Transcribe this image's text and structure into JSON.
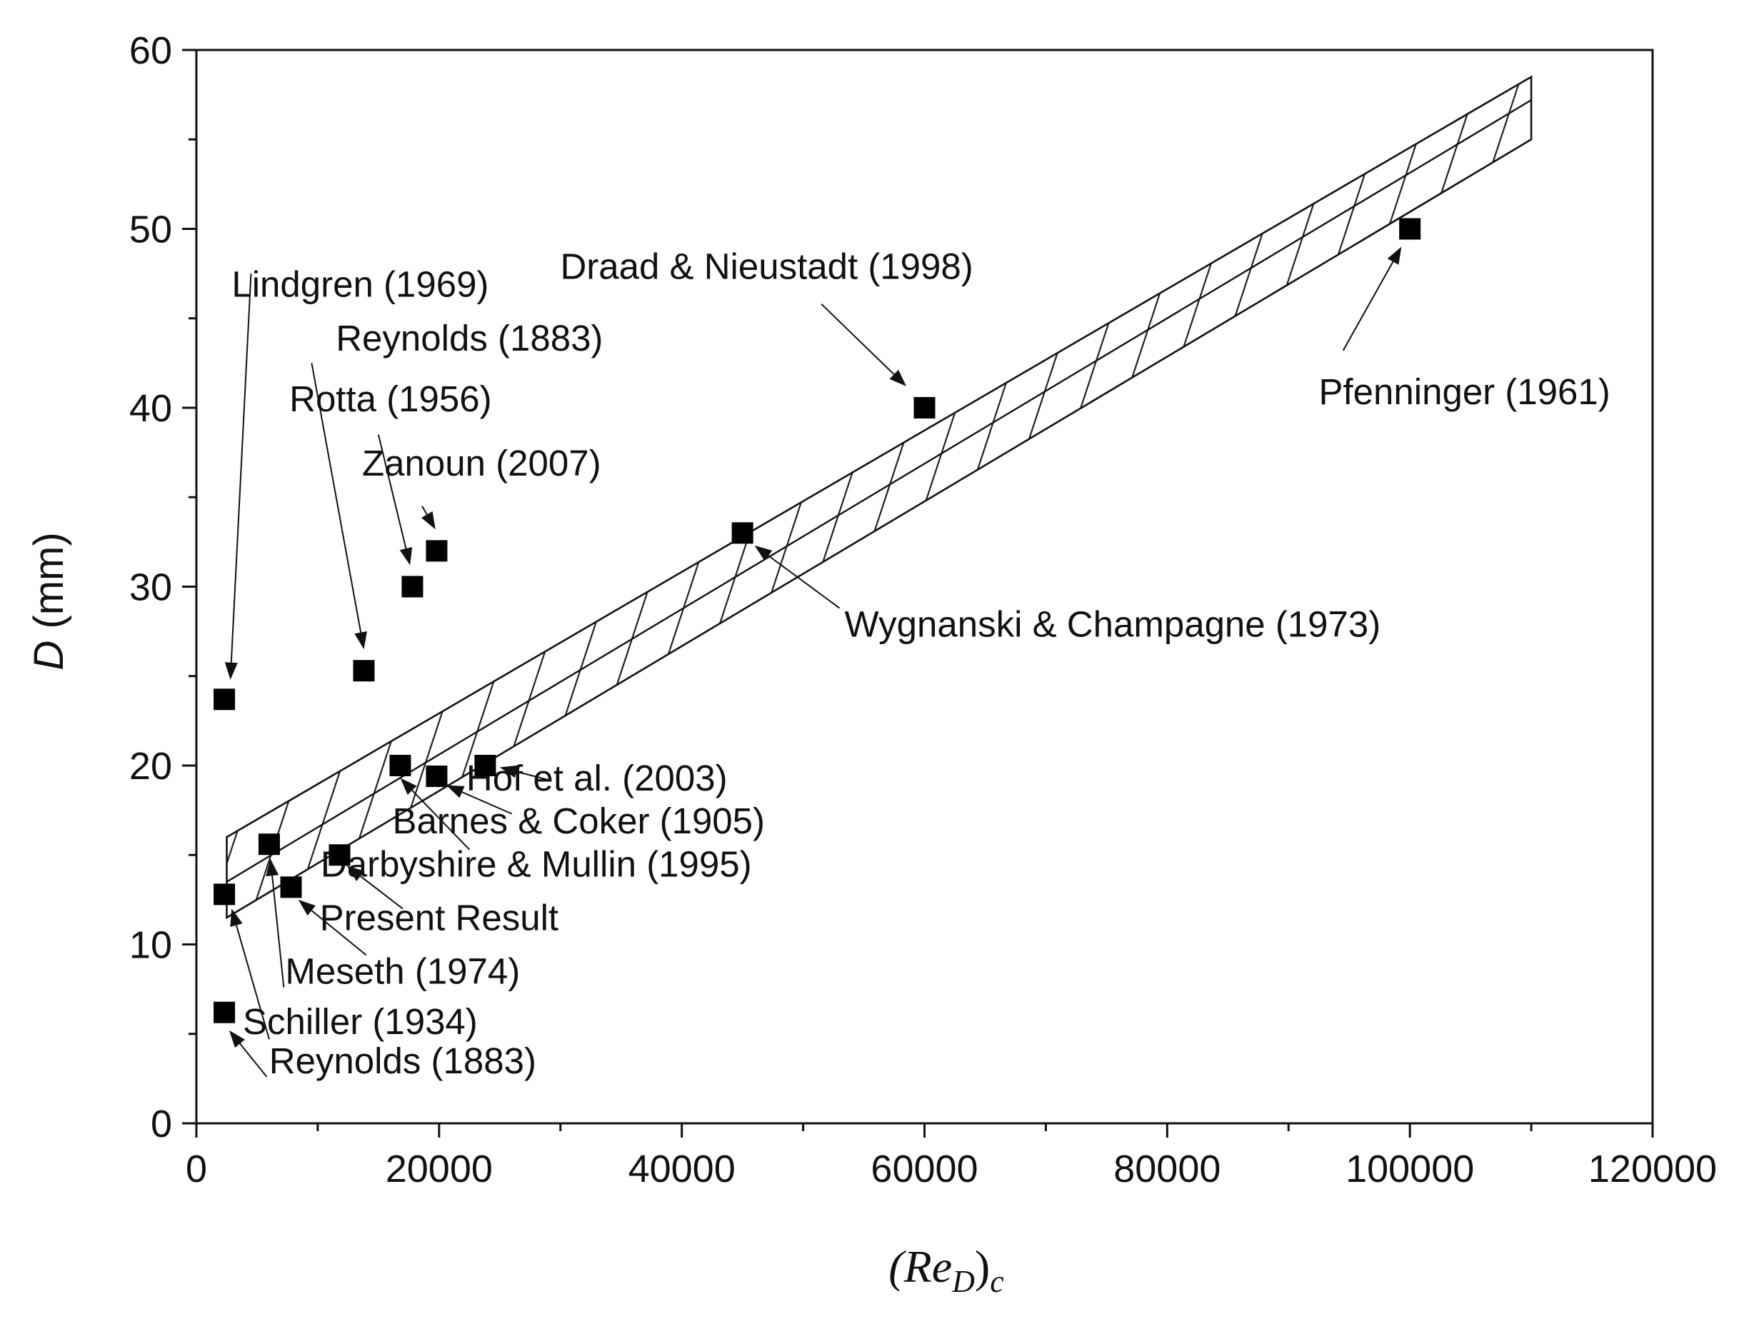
{
  "chart_data": {
    "type": "scatter",
    "title": "",
    "xlabel": {
      "base": "(Re",
      "sub": "D",
      "close": ")",
      "sub2": "c"
    },
    "ylabel": {
      "main": "D",
      "unit": " (mm)"
    },
    "xlim": [
      0,
      120000
    ],
    "ylim": [
      0,
      60
    ],
    "xticks": [
      0,
      20000,
      40000,
      60000,
      80000,
      100000,
      120000
    ],
    "yticks": [
      0,
      10,
      20,
      30,
      40,
      50,
      60
    ],
    "grid": false,
    "band": {
      "upper": [
        [
          2500,
          16
        ],
        [
          110000,
          58.5
        ]
      ],
      "middle": [
        [
          2500,
          13.5
        ],
        [
          110000,
          57.2
        ]
      ],
      "lower": [
        [
          2500,
          11.5
        ],
        [
          110000,
          55
        ]
      ],
      "fill": "hatched"
    },
    "points": [
      {
        "label": "Lindgren (1969)",
        "x": 2300,
        "y": 23.7
      },
      {
        "label": "Reynolds (1883)",
        "x": 13800,
        "y": 25.3
      },
      {
        "label": "Rotta (1956)",
        "x": 17800,
        "y": 30
      },
      {
        "label": "Zanoun (2007)",
        "x": 19800,
        "y": 32
      },
      {
        "label": "Draad & Nieustadt (1998)",
        "x": 60000,
        "y": 40
      },
      {
        "label": "Pfenninger (1961)",
        "x": 100000,
        "y": 50
      },
      {
        "label": "Wygnanski & Champagne (1973)",
        "x": 45000,
        "y": 33
      },
      {
        "label": "Hof et al. (2003)",
        "x": 23800,
        "y": 20
      },
      {
        "label": "Barnes & Coker (1905)",
        "x": 19800,
        "y": 19.4
      },
      {
        "label": "Darbyshire & Mullin (1995)",
        "x": 16800,
        "y": 20
      },
      {
        "label": "Present Result",
        "x": 11800,
        "y": 15
      },
      {
        "label": "Meseth (1974)",
        "x": 7800,
        "y": 13.2
      },
      {
        "label": "Schiller (1934)",
        "x": 6000,
        "y": 15.6
      },
      {
        "label": "Reynolds (1883)",
        "x": 2300,
        "y": 12.8
      },
      {
        "label": "Reynolds (1883)",
        "x": 2300,
        "y": 6.2
      }
    ],
    "annotations": [
      {
        "text": "Lindgren (1969)",
        "tx": 13500,
        "ty": 46.2,
        "from": [
          4500,
          47.5
        ],
        "to": [
          2800,
          24.8
        ]
      },
      {
        "text": "Reynolds (1883)",
        "tx": 22500,
        "ty": 43.2,
        "from": [
          9500,
          42.5
        ],
        "to": [
          13800,
          26.5
        ]
      },
      {
        "text": "Rotta (1956)",
        "tx": 16000,
        "ty": 39.8,
        "from": [
          15000,
          38.5
        ],
        "to": [
          17600,
          31.2
        ]
      },
      {
        "text": "Zanoun (2007)",
        "tx": 23500,
        "ty": 36.2,
        "from": [
          18600,
          34.5
        ],
        "to": [
          19700,
          33.2
        ]
      },
      {
        "text": "Draad & Nieustadt (1998)",
        "tx": 47000,
        "ty": 47.2,
        "from": [
          51500,
          45.8
        ],
        "to": [
          58500,
          41.2
        ]
      },
      {
        "text": "Pfenninger (1961)",
        "tx": 104500,
        "ty": 40.2,
        "from": [
          94500,
          43.2
        ],
        "to": [
          99300,
          49
        ]
      },
      {
        "text": "Wygnanski & Champagne (1973)",
        "tx": 75500,
        "ty": 27.2,
        "from": [
          53000,
          28.8
        ],
        "to": [
          46000,
          32.3
        ]
      },
      {
        "text": "Hof et al. (2003)",
        "tx": 33000,
        "ty": 18.6,
        "from": [
          29000,
          19.2
        ],
        "to": [
          25000,
          19.9
        ]
      },
      {
        "text": "Barnes & Coker (1905)",
        "tx": 31500,
        "ty": 16.2,
        "from": [
          26000,
          17.3
        ],
        "to": [
          20600,
          18.9
        ]
      },
      {
        "text": "Darbyshire & Mullin (1995)",
        "tx": 28000,
        "ty": 13.8,
        "from": [
          22500,
          15.3
        ],
        "to": [
          16800,
          19.3
        ]
      },
      {
        "text": "Present Result",
        "tx": 20000,
        "ty": 10.8,
        "from": [
          17000,
          12
        ],
        "to": [
          12400,
          14.4
        ]
      },
      {
        "text": "Meseth (1974)",
        "tx": 17000,
        "ty": 7.8,
        "from": [
          14000,
          9.4
        ],
        "to": [
          8400,
          12.5
        ]
      },
      {
        "text": "Schiller (1934)",
        "tx": 13500,
        "ty": 5.0,
        "from": [
          7200,
          7.6
        ],
        "to": [
          6100,
          14.8
        ]
      },
      {
        "text": "Reynolds (1883)",
        "tx": 17000,
        "ty": 2.8,
        "from": [
          6000,
          4.7
        ],
        "to": [
          2900,
          12
        ]
      },
      {
        "text": "",
        "tx": 0,
        "ty": 0,
        "from": [
          5800,
          2.6
        ],
        "to": [
          2700,
          5.2
        ]
      }
    ]
  }
}
